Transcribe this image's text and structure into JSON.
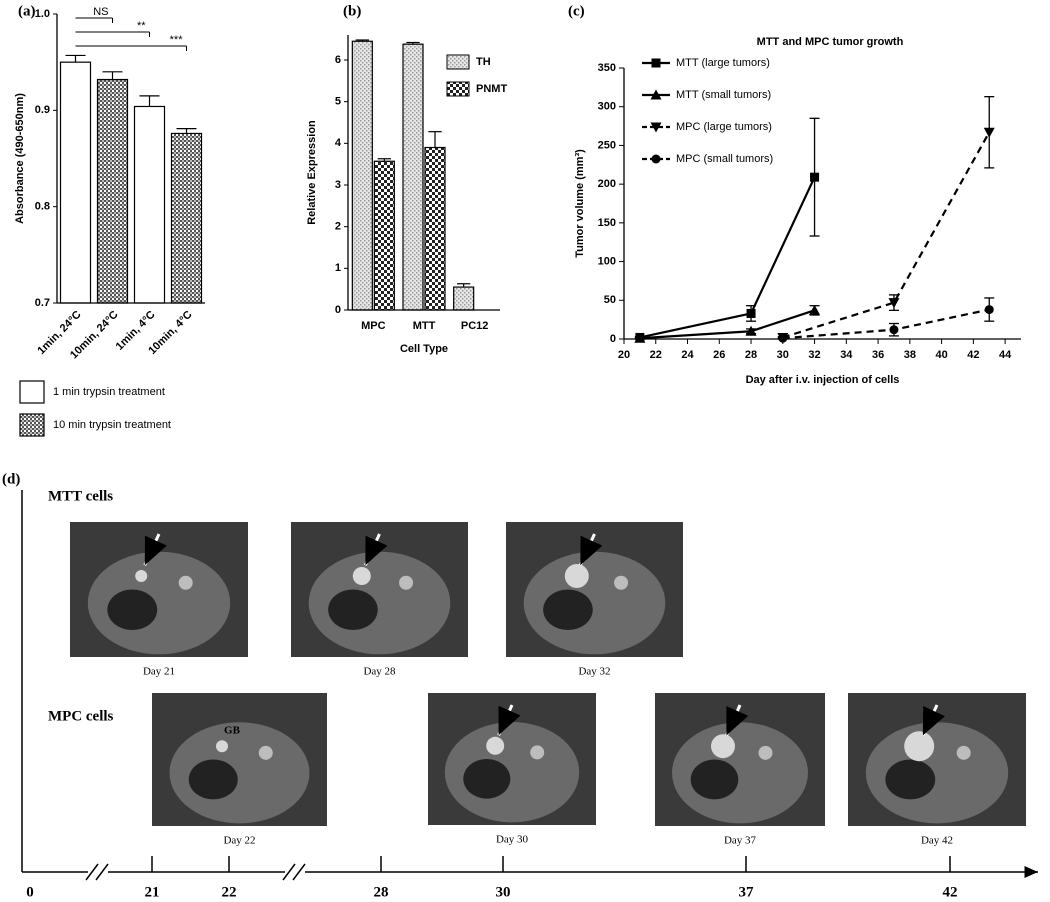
{
  "chart_data": [
    {
      "type": "bar",
      "panel_label": "(a)",
      "y_label": "Absorbance (490-650nm)",
      "categories": [
        "1min, 24°C",
        "10min, 24°C",
        "1min, 4°C",
        "10min, 4°C"
      ],
      "series": [
        {
          "name": "1 min trypsin treatment",
          "color": "#ffffff",
          "values": [
            0.95,
            null,
            0.904,
            null
          ],
          "errors": [
            0.007,
            null,
            0.011,
            null
          ]
        },
        {
          "name": "10 min trypsin treatment",
          "color": "#555555",
          "pattern": "crosshatch",
          "values": [
            null,
            0.932,
            null,
            0.876
          ],
          "errors": [
            null,
            0.008,
            null,
            0.005
          ]
        }
      ],
      "ylim": [
        0.7,
        1.0
      ],
      "yticks": [
        0.7,
        0.8,
        0.9,
        {
          "value": 1.0,
          "label": "1.0"
        }
      ],
      "annotations": [
        "NS",
        "**",
        "***"
      ]
    },
    {
      "type": "bar",
      "panel_label": "(b)",
      "x_label": "Cell Type",
      "y_label": "Relative Expression",
      "categories": [
        "MPC",
        "MTT",
        "PC12"
      ],
      "series": [
        {
          "name": "TH",
          "color": "#9a9a9a",
          "pattern": "dots",
          "values": [
            6.45,
            6.38,
            0.55
          ],
          "errors": [
            0.03,
            0.04,
            0.08
          ]
        },
        {
          "name": "PNMT",
          "color": "#222222",
          "pattern": "checker",
          "values": [
            3.57,
            3.9,
            null
          ],
          "errors": [
            0.06,
            0.38,
            null
          ]
        }
      ],
      "ylim": [
        0,
        6.6
      ],
      "yticks": [
        0,
        1,
        2,
        3,
        4,
        5,
        6
      ]
    },
    {
      "type": "line",
      "panel_label": "(c)",
      "title": "MTT and MPC tumor growth",
      "x_label": "Day after i.v. injection of cells",
      "y_label": "Tumor volume (mm³)",
      "series": [
        {
          "name": "MTT (large tumors)",
          "color": "#000000",
          "marker": "square",
          "dashed": false,
          "x": [
            21,
            28,
            32
          ],
          "values": [
            2,
            33,
            209
          ],
          "errors": [
            1,
            10,
            76
          ]
        },
        {
          "name": "MTT (small tumors)",
          "color": "#000000",
          "marker": "triangle",
          "dashed": false,
          "x": [
            21,
            28,
            32
          ],
          "values": [
            1,
            10,
            37
          ],
          "errors": [
            1,
            3,
            6
          ]
        },
        {
          "name": "MPC (large tumors)",
          "color": "#000000",
          "marker": "triangle-down",
          "dashed": true,
          "x": [
            30,
            37,
            43
          ],
          "values": [
            2,
            47,
            267
          ],
          "errors": [
            1,
            10,
            46
          ]
        },
        {
          "name": "MPC (small tumors)",
          "color": "#000000",
          "marker": "circle",
          "dashed": true,
          "x": [
            30,
            37,
            43
          ],
          "values": [
            1,
            12,
            38
          ],
          "errors": [
            1,
            8,
            15
          ]
        }
      ],
      "xlim": [
        20,
        45
      ],
      "xticks": [
        20,
        22,
        24,
        26,
        28,
        30,
        32,
        34,
        36,
        38,
        40,
        42,
        44
      ],
      "ylim": [
        0,
        350
      ],
      "yticks": [
        0,
        50,
        100,
        150,
        200,
        250,
        300,
        350
      ]
    }
  ],
  "panel_d": {
    "label": "(d)",
    "rows": [
      {
        "title": "MTT cells",
        "images": [
          "Day 21",
          "Day 28",
          "Day 32"
        ]
      },
      {
        "title": "MPC cells",
        "images": [
          "Day 22",
          "Day 30",
          "Day 37",
          "Day 42"
        ]
      }
    ],
    "annotation": "GB",
    "timeline": [
      0,
      21,
      22,
      28,
      30,
      37,
      42
    ]
  }
}
